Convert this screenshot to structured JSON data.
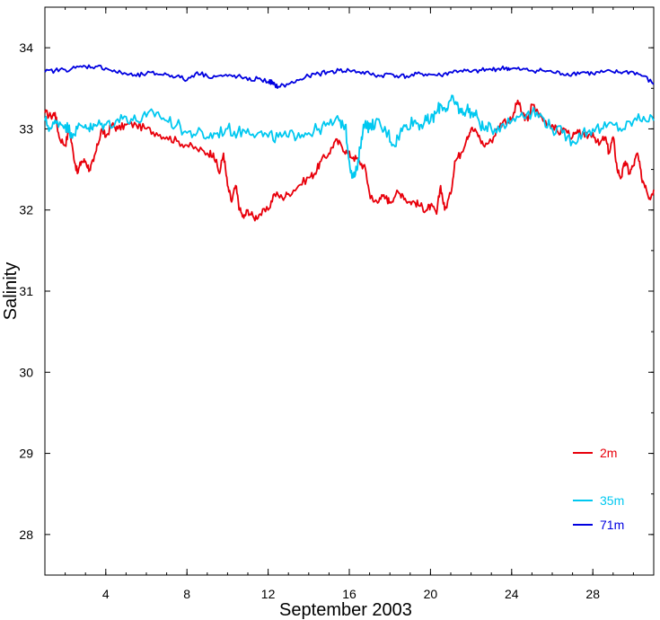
{
  "chart_data": {
    "type": "line",
    "title": "",
    "xlabel": "September 2003",
    "ylabel": "Salinity",
    "xlim": [
      1,
      31
    ],
    "ylim": [
      27.5,
      34.5
    ],
    "x_ticks": [
      4,
      8,
      12,
      16,
      20,
      24,
      28
    ],
    "x_tick_labels": [
      "4",
      "8",
      "12",
      "16",
      "20",
      "24",
      "28"
    ],
    "y_ticks": [
      28,
      29,
      30,
      31,
      32,
      33,
      34
    ],
    "y_tick_labels": [
      "28",
      "29",
      "30",
      "31",
      "32",
      "33",
      "34"
    ],
    "grid": false,
    "legend_position": "bottom-right",
    "series": [
      {
        "name": "2m",
        "color": "#e8000b",
        "points": [
          [
            1.0,
            33.2
          ],
          [
            1.3,
            33.15
          ],
          [
            1.5,
            33.2
          ],
          [
            1.7,
            32.9
          ],
          [
            2.0,
            32.8
          ],
          [
            2.2,
            33.0
          ],
          [
            2.4,
            32.7
          ],
          [
            2.6,
            32.45
          ],
          [
            2.8,
            32.6
          ],
          [
            3.0,
            32.6
          ],
          [
            3.2,
            32.5
          ],
          [
            3.4,
            32.6
          ],
          [
            3.6,
            32.8
          ],
          [
            3.8,
            33.0
          ],
          [
            4.0,
            32.9
          ],
          [
            4.3,
            33.05
          ],
          [
            4.6,
            33.0
          ],
          [
            5.0,
            33.05
          ],
          [
            5.5,
            33.05
          ],
          [
            6.0,
            33.0
          ],
          [
            6.5,
            32.95
          ],
          [
            7.0,
            32.9
          ],
          [
            7.5,
            32.85
          ],
          [
            8.0,
            32.8
          ],
          [
            8.5,
            32.75
          ],
          [
            9.0,
            32.7
          ],
          [
            9.3,
            32.7
          ],
          [
            9.6,
            32.45
          ],
          [
            9.8,
            32.7
          ],
          [
            10.0,
            32.3
          ],
          [
            10.2,
            32.1
          ],
          [
            10.4,
            32.3
          ],
          [
            10.6,
            32.0
          ],
          [
            10.8,
            31.9
          ],
          [
            11.0,
            32.0
          ],
          [
            11.3,
            31.9
          ],
          [
            11.6,
            31.95
          ],
          [
            12.0,
            32.0
          ],
          [
            12.3,
            32.2
          ],
          [
            12.7,
            32.15
          ],
          [
            13.0,
            32.2
          ],
          [
            13.5,
            32.3
          ],
          [
            14.0,
            32.4
          ],
          [
            14.3,
            32.45
          ],
          [
            14.6,
            32.6
          ],
          [
            15.0,
            32.7
          ],
          [
            15.3,
            32.85
          ],
          [
            15.6,
            32.8
          ],
          [
            15.9,
            32.7
          ],
          [
            16.2,
            32.65
          ],
          [
            16.5,
            32.6
          ],
          [
            16.8,
            32.5
          ],
          [
            17.0,
            32.2
          ],
          [
            17.2,
            32.1
          ],
          [
            17.5,
            32.15
          ],
          [
            17.8,
            32.15
          ],
          [
            18.0,
            32.1
          ],
          [
            18.3,
            32.2
          ],
          [
            18.6,
            32.2
          ],
          [
            18.9,
            32.1
          ],
          [
            19.2,
            32.1
          ],
          [
            19.5,
            32.05
          ],
          [
            19.8,
            32.0
          ],
          [
            20.0,
            32.05
          ],
          [
            20.3,
            31.95
          ],
          [
            20.5,
            32.3
          ],
          [
            20.7,
            32.0
          ],
          [
            21.0,
            32.2
          ],
          [
            21.2,
            32.6
          ],
          [
            21.5,
            32.7
          ],
          [
            21.8,
            32.9
          ],
          [
            22.0,
            33.0
          ],
          [
            22.3,
            32.95
          ],
          [
            22.6,
            32.8
          ],
          [
            23.0,
            32.85
          ],
          [
            23.3,
            33.0
          ],
          [
            23.6,
            33.1
          ],
          [
            24.0,
            33.1
          ],
          [
            24.3,
            33.35
          ],
          [
            24.5,
            33.2
          ],
          [
            24.8,
            33.1
          ],
          [
            25.0,
            33.3
          ],
          [
            25.3,
            33.2
          ],
          [
            25.6,
            33.1
          ],
          [
            26.0,
            33.05
          ],
          [
            26.3,
            32.95
          ],
          [
            26.6,
            33.0
          ],
          [
            27.0,
            32.9
          ],
          [
            27.3,
            32.95
          ],
          [
            27.6,
            32.9
          ],
          [
            28.0,
            32.95
          ],
          [
            28.3,
            32.8
          ],
          [
            28.6,
            32.9
          ],
          [
            28.8,
            32.7
          ],
          [
            29.0,
            32.9
          ],
          [
            29.2,
            32.5
          ],
          [
            29.4,
            32.4
          ],
          [
            29.6,
            32.6
          ],
          [
            29.8,
            32.45
          ],
          [
            30.0,
            32.55
          ],
          [
            30.2,
            32.7
          ],
          [
            30.4,
            32.4
          ],
          [
            30.6,
            32.3
          ],
          [
            30.8,
            32.15
          ],
          [
            31.0,
            32.25
          ]
        ]
      },
      {
        "name": "35m",
        "color": "#00c8f0",
        "points": [
          [
            1.0,
            33.1
          ],
          [
            1.3,
            33.0
          ],
          [
            1.6,
            33.1
          ],
          [
            2.0,
            33.05
          ],
          [
            2.3,
            32.95
          ],
          [
            2.6,
            33.0
          ],
          [
            3.0,
            33.05
          ],
          [
            3.3,
            33.0
          ],
          [
            3.6,
            33.05
          ],
          [
            4.0,
            33.05
          ],
          [
            4.5,
            33.1
          ],
          [
            5.0,
            33.15
          ],
          [
            5.5,
            33.1
          ],
          [
            6.0,
            33.15
          ],
          [
            6.5,
            33.2
          ],
          [
            7.0,
            33.1
          ],
          [
            7.5,
            33.05
          ],
          [
            8.0,
            32.95
          ],
          [
            8.5,
            32.95
          ],
          [
            9.0,
            32.9
          ],
          [
            9.5,
            32.95
          ],
          [
            10.0,
            33.0
          ],
          [
            10.5,
            32.95
          ],
          [
            11.0,
            33.0
          ],
          [
            11.5,
            32.95
          ],
          [
            12.0,
            32.9
          ],
          [
            12.5,
            32.9
          ],
          [
            13.0,
            32.9
          ],
          [
            13.5,
            32.95
          ],
          [
            14.0,
            32.95
          ],
          [
            14.5,
            33.0
          ],
          [
            15.0,
            33.05
          ],
          [
            15.5,
            33.1
          ],
          [
            15.8,
            33.05
          ],
          [
            16.0,
            32.6
          ],
          [
            16.2,
            32.4
          ],
          [
            16.4,
            32.5
          ],
          [
            16.6,
            32.9
          ],
          [
            16.8,
            33.1
          ],
          [
            17.0,
            33.0
          ],
          [
            17.3,
            33.1
          ],
          [
            17.6,
            33.0
          ],
          [
            17.9,
            32.95
          ],
          [
            18.2,
            32.8
          ],
          [
            18.5,
            32.95
          ],
          [
            18.8,
            33.05
          ],
          [
            19.2,
            33.1
          ],
          [
            19.5,
            33.05
          ],
          [
            19.8,
            33.1
          ],
          [
            20.0,
            33.1
          ],
          [
            20.3,
            33.2
          ],
          [
            20.5,
            33.3
          ],
          [
            20.8,
            33.25
          ],
          [
            21.0,
            33.35
          ],
          [
            21.3,
            33.3
          ],
          [
            21.5,
            33.2
          ],
          [
            21.8,
            33.25
          ],
          [
            22.0,
            33.2
          ],
          [
            22.3,
            33.15
          ],
          [
            22.6,
            33.0
          ],
          [
            23.0,
            33.0
          ],
          [
            23.5,
            33.05
          ],
          [
            24.0,
            33.1
          ],
          [
            24.5,
            33.2
          ],
          [
            25.0,
            33.2
          ],
          [
            25.5,
            33.15
          ],
          [
            26.0,
            33.0
          ],
          [
            26.5,
            32.95
          ],
          [
            27.0,
            32.85
          ],
          [
            27.5,
            32.95
          ],
          [
            28.0,
            33.0
          ],
          [
            28.5,
            33.0
          ],
          [
            29.0,
            33.05
          ],
          [
            29.5,
            33.0
          ],
          [
            30.0,
            33.1
          ],
          [
            30.5,
            33.15
          ],
          [
            31.0,
            33.1
          ]
        ]
      },
      {
        "name": "71m",
        "color": "#0000e0",
        "points": [
          [
            1.0,
            33.7
          ],
          [
            1.5,
            33.72
          ],
          [
            2.0,
            33.73
          ],
          [
            2.5,
            33.75
          ],
          [
            3.0,
            33.77
          ],
          [
            3.5,
            33.77
          ],
          [
            4.0,
            33.75
          ],
          [
            4.5,
            33.7
          ],
          [
            5.0,
            33.68
          ],
          [
            5.5,
            33.65
          ],
          [
            6.0,
            33.68
          ],
          [
            6.5,
            33.68
          ],
          [
            7.0,
            33.67
          ],
          [
            7.5,
            33.65
          ],
          [
            8.0,
            33.6
          ],
          [
            8.5,
            33.7
          ],
          [
            9.0,
            33.65
          ],
          [
            9.5,
            33.65
          ],
          [
            10.0,
            33.65
          ],
          [
            10.5,
            33.65
          ],
          [
            11.0,
            33.6
          ],
          [
            11.5,
            33.62
          ],
          [
            12.0,
            33.58
          ],
          [
            12.15,
            33.58
          ],
          [
            12.25,
            33.55
          ],
          [
            12.5,
            33.52
          ],
          [
            13.0,
            33.55
          ],
          [
            13.5,
            33.6
          ],
          [
            14.0,
            33.65
          ],
          [
            14.5,
            33.68
          ],
          [
            15.0,
            33.7
          ],
          [
            15.5,
            33.72
          ],
          [
            16.0,
            33.72
          ],
          [
            16.5,
            33.7
          ],
          [
            17.0,
            33.68
          ],
          [
            17.5,
            33.65
          ],
          [
            18.0,
            33.68
          ],
          [
            18.5,
            33.65
          ],
          [
            19.0,
            33.65
          ],
          [
            19.5,
            33.68
          ],
          [
            20.0,
            33.67
          ],
          [
            20.5,
            33.66
          ],
          [
            21.0,
            33.7
          ],
          [
            21.5,
            33.72
          ],
          [
            22.0,
            33.7
          ],
          [
            22.5,
            33.72
          ],
          [
            23.0,
            33.73
          ],
          [
            23.3,
            33.74
          ],
          [
            23.7,
            33.75
          ],
          [
            24.0,
            33.74
          ],
          [
            24.5,
            33.73
          ],
          [
            25.0,
            33.72
          ],
          [
            25.5,
            33.72
          ],
          [
            26.0,
            33.7
          ],
          [
            26.5,
            33.68
          ],
          [
            27.0,
            33.68
          ],
          [
            27.5,
            33.7
          ],
          [
            28.0,
            33.68
          ],
          [
            28.5,
            33.7
          ],
          [
            29.0,
            33.7
          ],
          [
            29.5,
            33.7
          ],
          [
            30.0,
            33.7
          ],
          [
            30.5,
            33.65
          ],
          [
            31.0,
            33.55
          ]
        ]
      }
    ]
  }
}
